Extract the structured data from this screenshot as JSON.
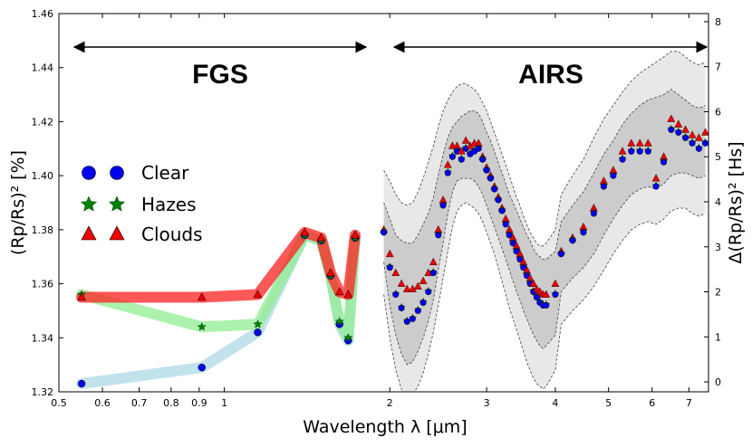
{
  "chart_data": {
    "type": "scatter",
    "xlabel": "Wavelength λ [μm]",
    "ylabel": "(Rp/Rs)² [%]",
    "ylabel_right": "Δ(Rp/Rs)² [Hs]",
    "xscale": "log",
    "xlim": [
      0.5,
      7.6
    ],
    "ylim": [
      1.32,
      1.46
    ],
    "ylim_right": [
      -0.22,
      8.18
    ],
    "x_ticks": [
      0.5,
      0.6,
      0.7,
      0.8,
      0.9,
      1,
      2,
      3,
      4,
      5,
      6,
      7
    ],
    "x_tick_labels": [
      "0.5",
      "0.6",
      "0.7",
      "0.8",
      "0.9",
      "1",
      "2",
      "3",
      "4",
      "5",
      "6",
      "7"
    ],
    "y_ticks": [
      1.32,
      1.34,
      1.36,
      1.38,
      1.4,
      1.42,
      1.44,
      1.46
    ],
    "y_tick_labels": [
      "1.32",
      "1.34",
      "1.36",
      "1.38",
      "1.40",
      "1.42",
      "1.44",
      "1.46"
    ],
    "y2_ticks": [
      0,
      1,
      2,
      3,
      4,
      5,
      6,
      7,
      8
    ],
    "y2_tick_labels": [
      "0",
      "1",
      "2",
      "3",
      "4",
      "5",
      "6",
      "7",
      "8"
    ],
    "legend": [
      "Clear",
      "Hazes",
      "Clouds"
    ],
    "legend_position": "center-left",
    "annotations": [
      "FGS",
      "AIRS"
    ],
    "fgs_range": [
      0.5,
      1.75
    ],
    "airs_range": [
      1.95,
      7.6
    ],
    "series": [
      {
        "name": "Clear",
        "color": "#0000ee",
        "marker": "circle",
        "x": [
          0.55,
          0.91,
          1.15,
          1.4,
          1.5,
          1.56,
          1.62,
          1.68,
          1.73
        ],
        "y": [
          1.323,
          1.329,
          1.342,
          1.378,
          1.376,
          1.363,
          1.345,
          1.339,
          1.377
        ]
      },
      {
        "name": "Hazes",
        "color": "#008000",
        "marker": "star",
        "x": [
          0.55,
          0.91,
          1.15,
          1.4,
          1.5,
          1.56,
          1.62,
          1.68,
          1.73
        ],
        "y": [
          1.356,
          1.344,
          1.345,
          1.378,
          1.376,
          1.363,
          1.346,
          1.34,
          1.377
        ]
      },
      {
        "name": "Clouds",
        "color": "#ee0000",
        "marker": "triangle",
        "x": [
          0.55,
          0.91,
          1.15,
          1.4,
          1.5,
          1.56,
          1.62,
          1.68,
          1.73
        ],
        "y": [
          1.355,
          1.355,
          1.356,
          1.379,
          1.377,
          1.364,
          1.357,
          1.356,
          1.378
        ]
      }
    ],
    "band_colors": {
      "Clear": "#add8e6",
      "Hazes": "#90ee90",
      "Clouds": "#ff2020"
    },
    "airs_band_colors": {
      "inner": "#cccccc",
      "outer": "#e8e8e8"
    },
    "airs": {
      "x": [
        1.95,
        2.0,
        2.05,
        2.1,
        2.15,
        2.2,
        2.25,
        2.3,
        2.35,
        2.4,
        2.45,
        2.5,
        2.55,
        2.6,
        2.65,
        2.7,
        2.75,
        2.8,
        2.85,
        2.9,
        2.95,
        3.0,
        3.05,
        3.1,
        3.15,
        3.2,
        3.25,
        3.3,
        3.35,
        3.4,
        3.45,
        3.5,
        3.55,
        3.6,
        3.65,
        3.7,
        3.75,
        3.8,
        3.85,
        4.0,
        4.1,
        4.3,
        4.5,
        4.7,
        4.9,
        5.1,
        5.3,
        5.5,
        5.7,
        5.9,
        6.1,
        6.3,
        6.5,
        6.7,
        6.9,
        7.1,
        7.3,
        7.5
      ],
      "clear": [
        1.379,
        1.366,
        1.356,
        1.351,
        1.346,
        1.347,
        1.35,
        1.353,
        1.357,
        1.364,
        1.378,
        1.389,
        1.401,
        1.407,
        1.409,
        1.406,
        1.41,
        1.408,
        1.409,
        1.41,
        1.406,
        1.402,
        1.399,
        1.395,
        1.391,
        1.387,
        1.382,
        1.378,
        1.375,
        1.372,
        1.369,
        1.366,
        1.363,
        1.36,
        1.357,
        1.355,
        1.353,
        1.352,
        1.352,
        1.356,
        1.371,
        1.376,
        1.379,
        1.386,
        1.396,
        1.4,
        1.406,
        1.409,
        1.409,
        1.409,
        1.396,
        1.405,
        1.417,
        1.416,
        1.414,
        1.412,
        1.41,
        1.412
      ],
      "clouds": [
        1.38,
        1.371,
        1.364,
        1.36,
        1.358,
        1.358,
        1.359,
        1.361,
        1.364,
        1.368,
        1.38,
        1.391,
        1.404,
        1.411,
        1.411,
        1.409,
        1.413,
        1.411,
        1.412,
        1.412,
        1.407,
        1.403,
        1.4,
        1.396,
        1.392,
        1.388,
        1.384,
        1.38,
        1.377,
        1.374,
        1.371,
        1.368,
        1.365,
        1.362,
        1.36,
        1.358,
        1.357,
        1.356,
        1.356,
        1.36,
        1.372,
        1.377,
        1.381,
        1.388,
        1.398,
        1.402,
        1.409,
        1.412,
        1.412,
        1.412,
        1.399,
        1.407,
        1.421,
        1.419,
        1.417,
        1.415,
        1.414,
        1.416
      ],
      "inner_upper": [
        1.39,
        1.384,
        1.378,
        1.376,
        1.375,
        1.375,
        1.378,
        1.382,
        1.386,
        1.392,
        1.4,
        1.408,
        1.414,
        1.418,
        1.42,
        1.422,
        1.423,
        1.424,
        1.424,
        1.423,
        1.42,
        1.416,
        1.413,
        1.409,
        1.405,
        1.401,
        1.397,
        1.393,
        1.39,
        1.387,
        1.384,
        1.381,
        1.378,
        1.376,
        1.373,
        1.371,
        1.37,
        1.369,
        1.369,
        1.372,
        1.383,
        1.389,
        1.394,
        1.401,
        1.408,
        1.413,
        1.419,
        1.423,
        1.426,
        1.428,
        1.429,
        1.43,
        1.432,
        1.43,
        1.428,
        1.426,
        1.425,
        1.426
      ],
      "inner_lower": [
        1.368,
        1.352,
        1.341,
        1.334,
        1.33,
        1.331,
        1.335,
        1.34,
        1.346,
        1.354,
        1.365,
        1.375,
        1.386,
        1.394,
        1.398,
        1.399,
        1.399,
        1.399,
        1.398,
        1.396,
        1.393,
        1.389,
        1.385,
        1.381,
        1.377,
        1.373,
        1.369,
        1.365,
        1.361,
        1.357,
        1.354,
        1.35,
        1.347,
        1.344,
        1.341,
        1.339,
        1.337,
        1.336,
        1.337,
        1.341,
        1.357,
        1.362,
        1.366,
        1.371,
        1.378,
        1.384,
        1.389,
        1.393,
        1.395,
        1.396,
        1.395,
        1.397,
        1.4,
        1.401,
        1.401,
        1.4,
        1.399,
        1.4
      ],
      "outer_upper": [
        1.402,
        1.398,
        1.393,
        1.39,
        1.389,
        1.39,
        1.394,
        1.399,
        1.405,
        1.411,
        1.418,
        1.424,
        1.428,
        1.431,
        1.433,
        1.434,
        1.434,
        1.433,
        1.432,
        1.43,
        1.427,
        1.424,
        1.42,
        1.416,
        1.412,
        1.408,
        1.404,
        1.4,
        1.396,
        1.392,
        1.389,
        1.385,
        1.382,
        1.379,
        1.377,
        1.375,
        1.374,
        1.374,
        1.375,
        1.38,
        1.393,
        1.4,
        1.406,
        1.414,
        1.421,
        1.426,
        1.431,
        1.435,
        1.438,
        1.44,
        1.442,
        1.444,
        1.446,
        1.446,
        1.444,
        1.442,
        1.441,
        1.442
      ],
      "outer_lower": [
        1.356,
        1.34,
        1.328,
        1.321,
        1.318,
        1.319,
        1.322,
        1.327,
        1.334,
        1.342,
        1.352,
        1.362,
        1.372,
        1.381,
        1.387,
        1.389,
        1.39,
        1.389,
        1.388,
        1.386,
        1.383,
        1.379,
        1.375,
        1.371,
        1.366,
        1.361,
        1.356,
        1.351,
        1.347,
        1.343,
        1.339,
        1.335,
        1.331,
        1.328,
        1.325,
        1.323,
        1.322,
        1.321,
        1.322,
        1.328,
        1.345,
        1.35,
        1.354,
        1.359,
        1.365,
        1.371,
        1.376,
        1.38,
        1.382,
        1.383,
        1.382,
        1.384,
        1.387,
        1.388,
        1.388,
        1.386,
        1.385,
        1.386
      ]
    }
  }
}
